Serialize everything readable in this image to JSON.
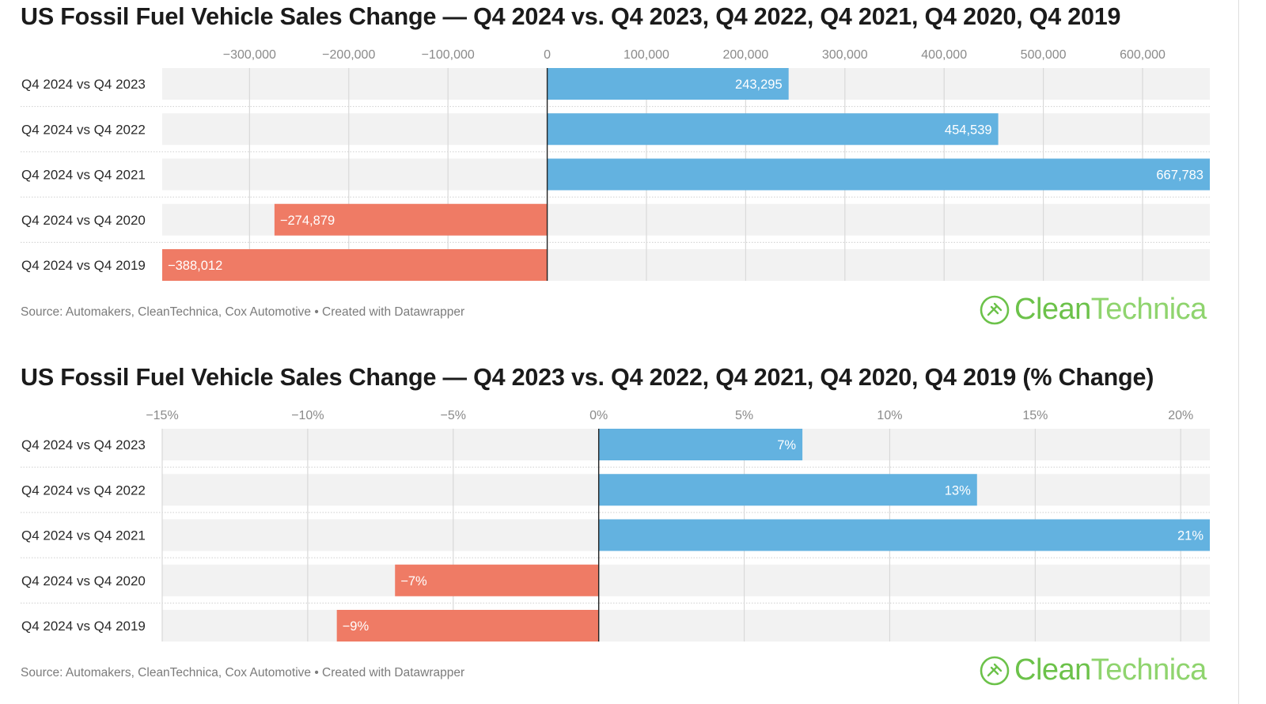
{
  "colors": {
    "positive": "#63b2e0",
    "negative": "#ef7b65",
    "row_bg": "#f2f2f2",
    "grid": "#d9d9d9",
    "zero": "#222222",
    "logo": "#6cc24a"
  },
  "chart_data": [
    {
      "type": "bar",
      "orientation": "horizontal",
      "title": "US Fossil Fuel Vehicle Sales Change — Q4 2024 vs. Q4 2023, Q4 2022, Q4 2021, Q4 2020, Q4 2019",
      "categories": [
        "Q4 2024 vs Q4 2023",
        "Q4 2024 vs Q4 2022",
        "Q4 2024 vs Q4 2021",
        "Q4 2024 vs Q4 2020",
        "Q4 2024 vs Q4 2019"
      ],
      "values": [
        243295,
        454539,
        667783,
        -274879,
        -388012
      ],
      "value_labels": [
        "243,295",
        "454,539",
        "667,783",
        "−274,879",
        "−388,012"
      ],
      "xlim": [
        -388012,
        667783
      ],
      "ticks": [
        -300000,
        -200000,
        -100000,
        0,
        100000,
        200000,
        300000,
        400000,
        500000,
        600000
      ],
      "tick_labels": [
        "−300,000",
        "−200,000",
        "−100,000",
        "0",
        "100,000",
        "200,000",
        "300,000",
        "400,000",
        "500,000",
        "600,000"
      ],
      "source": "Source: Automakers, CleanTechnica, Cox Automotive • Created with Datawrapper"
    },
    {
      "type": "bar",
      "orientation": "horizontal",
      "title": "US Fossil Fuel Vehicle Sales Change — Q4 2023 vs. Q4 2022, Q4 2021, Q4 2020, Q4 2019 (% Change)",
      "categories": [
        "Q4 2024 vs Q4 2023",
        "Q4 2024 vs Q4 2022",
        "Q4 2024 vs Q4 2021",
        "Q4 2024 vs Q4 2020",
        "Q4 2024 vs Q4 2019"
      ],
      "values": [
        7,
        13,
        21,
        -7,
        -9
      ],
      "value_labels": [
        "7%",
        "13%",
        "21%",
        "−7%",
        "−9%"
      ],
      "xlim": [
        -15,
        21
      ],
      "ticks": [
        -15,
        -10,
        -5,
        0,
        5,
        10,
        15,
        20
      ],
      "tick_labels": [
        "−15%",
        "−10%",
        "−5%",
        "0%",
        "5%",
        "10%",
        "15%",
        "20%"
      ],
      "source": "Source: Automakers, CleanTechnica, Cox Automotive • Created with Datawrapper"
    }
  ],
  "logo": {
    "name_part1": "Clean",
    "name_part2": "Technica"
  }
}
